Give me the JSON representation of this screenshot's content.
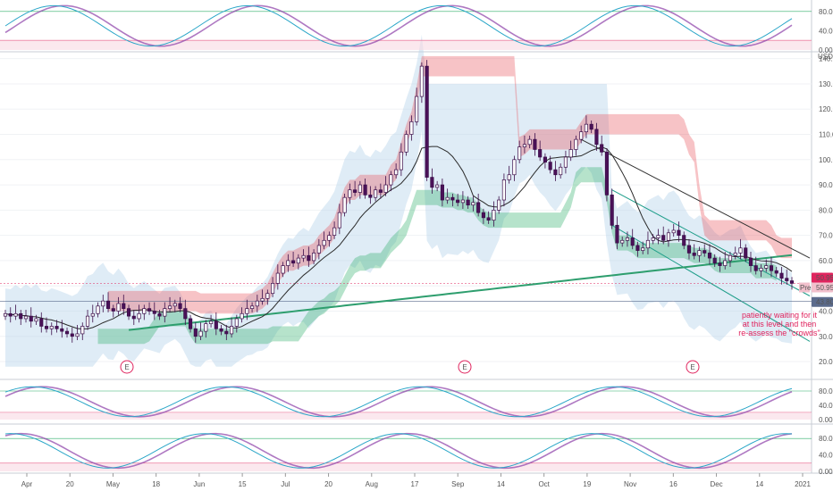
{
  "colors": {
    "up": "#ffffff",
    "down": "#4a1158",
    "candle_outline": "#3b0d49",
    "long_ma": "#2e9e6e",
    "mid_ma": "#2b2b2b",
    "resistance_band": "#e8525c",
    "support_band": "#2faf6a",
    "cloud": "#b9d4ec",
    "channel": "#1f9e8a",
    "annotation": "#e0245e",
    "osc_line": "#8b3ea8",
    "osc_signal": "#2aa6c8",
    "price_label_bg": "#e0245e"
  },
  "main_axis": {
    "currency": "USD",
    "ticks": [
      "140.00",
      "130.00",
      "120.00",
      "110.00",
      "100.00",
      "90.00",
      "80.00",
      "70.00",
      "60.00",
      "50.00",
      "40.00",
      "30.00",
      "20.00"
    ],
    "price_labels": [
      "50.95",
      "50.95",
      "43.80"
    ],
    "price_label_prefix": "Pre"
  },
  "osc_axis": {
    "ticks": [
      "80.00",
      "40.00",
      "0.00"
    ]
  },
  "time_axis": [
    "Apr",
    "20",
    "May",
    "18",
    "Jun",
    "15",
    "Jul",
    "20",
    "Aug",
    "17",
    "Sep",
    "14",
    "Oct",
    "19",
    "Nov",
    "16",
    "Dec",
    "14",
    "2021"
  ],
  "earnings_markers": [
    "E",
    "E",
    "E"
  ],
  "annotation_lines": [
    "patiently waiting for it",
    "at this level and then",
    "re-assess the \"crowds\""
  ],
  "chart_data": {
    "type": "line",
    "series": [
      {
        "values": [
          39,
          38,
          39,
          37,
          38,
          36,
          37,
          34,
          33,
          34,
          33,
          32,
          31,
          30,
          31,
          34,
          38,
          39,
          42,
          44,
          41,
          40,
          43,
          41,
          38,
          37,
          39,
          41,
          40,
          39,
          38,
          41,
          42,
          43,
          41,
          37,
          33,
          30,
          32,
          35,
          36,
          33,
          32,
          31,
          34,
          37,
          39,
          41,
          42,
          44,
          45,
          47,
          51,
          55,
          58,
          60,
          59,
          61,
          62,
          60,
          63,
          66,
          68,
          70,
          73,
          79,
          85,
          88,
          87,
          90,
          86,
          85,
          88,
          87,
          90,
          94,
          96,
          103,
          110,
          115,
          125,
          137,
          93,
          89,
          90,
          84,
          85,
          84,
          83,
          84,
          82,
          83,
          79,
          77,
          76,
          80,
          84,
          92,
          94,
          100,
          105,
          106,
          108,
          104,
          101,
          99,
          96,
          94,
          97,
          101,
          104,
          108,
          111,
          114,
          112,
          106,
          103,
          86,
          74,
          67,
          68,
          69,
          66,
          64,
          65,
          68,
          69,
          70,
          68,
          71,
          72,
          70,
          66,
          63,
          62,
          64,
          63,
          61,
          59,
          58,
          60,
          62,
          63,
          65,
          61,
          58,
          56,
          57,
          58,
          56,
          55,
          53,
          52,
          51
        ]
      }
    ]
  }
}
